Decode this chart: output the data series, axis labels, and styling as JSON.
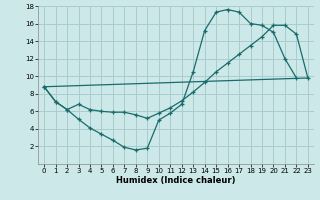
{
  "xlabel": "Humidex (Indice chaleur)",
  "bg_color": "#cce8e8",
  "grid_color": "#aacccc",
  "line_color": "#1a6b6b",
  "xlim": [
    -0.5,
    23.5
  ],
  "ylim": [
    0,
    18
  ],
  "xticks": [
    0,
    1,
    2,
    3,
    4,
    5,
    6,
    7,
    8,
    9,
    10,
    11,
    12,
    13,
    14,
    15,
    16,
    17,
    18,
    19,
    20,
    21,
    22,
    23
  ],
  "yticks": [
    2,
    4,
    6,
    8,
    10,
    12,
    14,
    16,
    18
  ],
  "curve1_x": [
    0,
    1,
    2,
    3,
    4,
    5,
    6,
    7,
    8,
    9,
    10,
    11,
    12,
    13,
    14,
    15,
    16,
    17,
    18,
    19,
    20,
    21,
    22
  ],
  "curve1_y": [
    8.8,
    7.1,
    6.2,
    5.1,
    4.1,
    3.4,
    2.7,
    1.9,
    1.6,
    1.8,
    5.0,
    5.8,
    6.8,
    10.5,
    15.2,
    17.3,
    17.6,
    17.3,
    16.0,
    15.8,
    15.0,
    12.0,
    9.8
  ],
  "curve2_x": [
    0,
    1,
    2,
    3,
    4,
    5,
    6,
    7,
    8,
    9,
    10,
    11,
    12,
    13,
    14,
    15,
    16,
    17,
    18,
    19,
    20,
    21,
    22,
    23
  ],
  "curve2_y": [
    8.8,
    7.1,
    6.2,
    6.8,
    6.2,
    6.0,
    5.9,
    5.9,
    5.6,
    5.2,
    5.8,
    6.4,
    7.2,
    8.2,
    9.3,
    10.5,
    11.5,
    12.5,
    13.5,
    14.5,
    15.8,
    15.8,
    14.8,
    9.8
  ],
  "line3_x": [
    0,
    23
  ],
  "line3_y": [
    8.8,
    9.8
  ]
}
